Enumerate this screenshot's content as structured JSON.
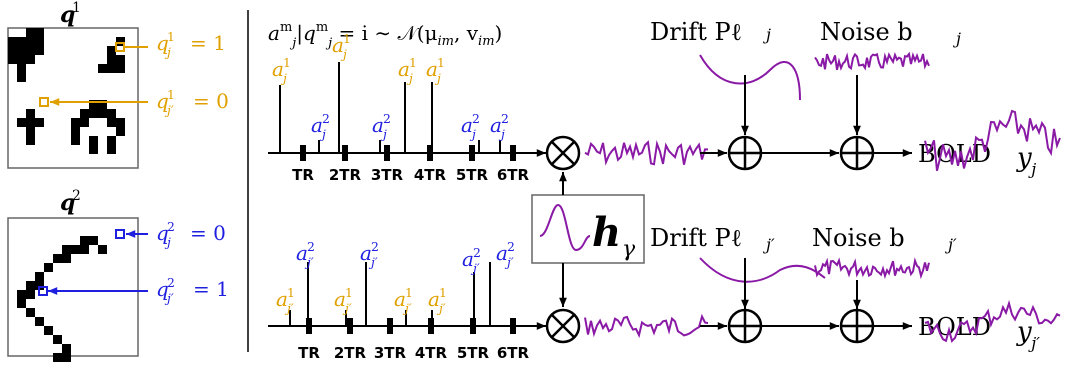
{
  "colors": {
    "orange": "#e0a000",
    "blue": "#1f1fe0",
    "purple": "#8a1aa6",
    "black": "#000000"
  },
  "labels": {
    "q1_title": "q",
    "q1_sup": "1",
    "q2_title": "q",
    "q2_sup": "2",
    "q1_j": "q",
    "q1_j_sup": "1",
    "q1_j_sub": "j",
    "q1_j_val": "= 1",
    "q1_jp": "q",
    "q1_jp_sup": "1",
    "q1_jp_sub": "j′",
    "q1_jp_val": "= 0",
    "q2_j": "q",
    "q2_j_sup": "2",
    "q2_j_sub": "j",
    "q2_j_val": "= 0",
    "q2_jp": "q",
    "q2_jp_sup": "2",
    "q2_jp_sub": "j′",
    "q2_jp_val": "= 1",
    "formula": "a",
    "formula_rest": "|q",
    "formula_dist": " = i ∼ 𝒩(μ",
    "formula_end": ", v",
    "formula_close": ")",
    "formula_sup": "m",
    "formula_sub_j": "j",
    "formula_sub_im": "im",
    "drift_top": "Drift  Pℓ",
    "drift_top_sub": "j",
    "noise_top": "Noise  b",
    "noise_top_sub": "j",
    "drift_bot": "Drift  Pℓ",
    "drift_bot_sub": "j′",
    "noise_bot": "Noise  b",
    "noise_bot_sub": "j′",
    "bold_top": "BOLD",
    "bold_top_var": "y",
    "bold_top_sub": "j",
    "bold_bot": "BOLD",
    "bold_bot_var": "y",
    "bold_bot_sub": "j′",
    "hrf_symbol": "h",
    "hrf_sub": "γ",
    "a": "a",
    "a_sup_1": "1",
    "a_sup_2": "2",
    "a_sub_j": "j",
    "a_sub_jp": "j′",
    "multiply": "⊗",
    "plus": "⊕"
  },
  "ticks": [
    "TR",
    "2TR",
    "3TR",
    "4TR",
    "5TR",
    "6TR"
  ]
}
